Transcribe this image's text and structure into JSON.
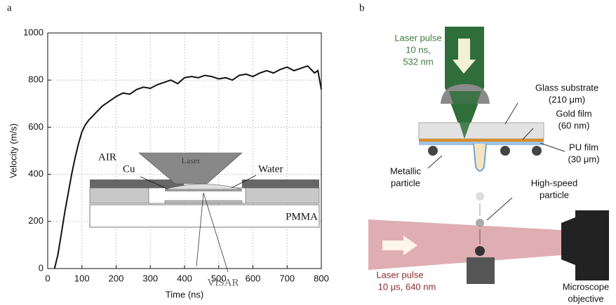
{
  "panel_labels": [
    "a",
    "b"
  ],
  "chart_data": {
    "type": "line",
    "x_label": "Time (ns)",
    "y_label": "Velocity (m/s)",
    "xlim": [
      0,
      800
    ],
    "xticks": [
      0,
      100,
      200,
      300,
      400,
      500,
      600,
      700,
      800
    ],
    "ylim": [
      0,
      1000
    ],
    "yticks": [
      0,
      200,
      400,
      600,
      800,
      1000
    ],
    "grid": true,
    "color": "#111111",
    "x": [
      20,
      30,
      40,
      50,
      60,
      70,
      80,
      90,
      100,
      110,
      120,
      140,
      160,
      180,
      200,
      220,
      240,
      260,
      280,
      300,
      320,
      340,
      360,
      380,
      400,
      420,
      440,
      460,
      480,
      500,
      520,
      540,
      560,
      580,
      600,
      620,
      640,
      660,
      680,
      700,
      720,
      740,
      760,
      780,
      790,
      800
    ],
    "values": [
      0,
      60,
      150,
      240,
      320,
      400,
      470,
      530,
      580,
      610,
      630,
      660,
      690,
      710,
      730,
      745,
      740,
      760,
      770,
      765,
      780,
      790,
      800,
      785,
      810,
      815,
      810,
      820,
      815,
      805,
      810,
      800,
      820,
      825,
      815,
      830,
      840,
      830,
      845,
      855,
      840,
      850,
      860,
      830,
      840,
      760
    ]
  },
  "inset": {
    "air": "AIR",
    "cu": "Cu",
    "laser": "Laser",
    "water": "Water",
    "pmma": "PMMA",
    "visar": "VISAR"
  },
  "diagram": {
    "laser_pulse_green": [
      "Laser pulse",
      "10 ns,",
      "532 nm"
    ],
    "glass": [
      "Glass substrate",
      "(210 μm)"
    ],
    "gold": [
      "Gold film",
      "(60 nm)"
    ],
    "pu": [
      "PU film",
      "(30 μm)"
    ],
    "metallic": [
      "Metallic",
      "particle"
    ],
    "high_speed": [
      "High-speed",
      "particle"
    ],
    "laser_pulse_red": [
      "Laser pulse",
      "10 μs, 640 nm"
    ],
    "objective": [
      "Microscope",
      "objective"
    ]
  }
}
